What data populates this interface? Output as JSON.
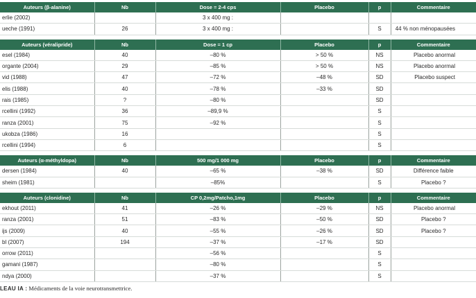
{
  "tables": [
    {
      "headers": [
        "Auteurs (β-alanine)",
        "Nb",
        "Dose = 2-4 cps",
        "Placebo",
        "p",
        "Commentaire"
      ],
      "rows": [
        [
          "erlie (2002)",
          "",
          "3 x 400 mg :",
          "",
          "",
          ""
        ],
        [
          "ueche (1991)",
          "26",
          "3 x 400 mg :",
          "",
          "S",
          "44 % non ménopausées"
        ]
      ]
    },
    {
      "headers": [
        "Auteurs (véralipride)",
        "Nb",
        "Dose = 1 cp",
        "Placebo",
        "p",
        "Commentaire"
      ],
      "rows": [
        [
          "esel (1984)",
          "40",
          "–80 %",
          "> 50 %",
          "NS",
          "Placebo anormal"
        ],
        [
          "organte (2004)",
          "29",
          "–85 %",
          "> 50 %",
          "NS",
          "Placebo anormal"
        ],
        [
          "vid (1988)",
          "47",
          "–72 %",
          "–48 %",
          "SD",
          "Placebo suspect"
        ],
        [
          "elis (1988)",
          "40",
          "–78 %",
          "–33 %",
          "SD",
          ""
        ],
        [
          "rais (1985)",
          "?",
          "–80 %",
          "",
          "SD",
          ""
        ],
        [
          "rcellini (1992)",
          "36",
          "–89,9 %",
          "",
          "S",
          ""
        ],
        [
          "ranza (2001)",
          "75",
          "–92 %",
          "",
          "S",
          ""
        ],
        [
          "ukobza (1986)",
          "16",
          "",
          "",
          "S",
          ""
        ],
        [
          "rcellini (1994)",
          "6",
          "",
          "",
          "S",
          ""
        ]
      ]
    },
    {
      "headers": [
        "Auteurs (α-méthyldopa)",
        "Nb",
        "500 mg/1 000 mg",
        "Placebo",
        "p",
        "Commentaire"
      ],
      "rows": [
        [
          "dersen (1984)",
          "40",
          "–65 %",
          "–38 %",
          "SD",
          "Différence faible"
        ],
        [
          "sheim (1981)",
          "",
          "–85%",
          "",
          "S",
          "Placebo ?"
        ]
      ]
    },
    {
      "headers": [
        "Auteurs (clonidine)",
        "Nb",
        "CP 0,2mg/Patcho,1mg",
        "Placebo",
        "p",
        "Commentaire"
      ],
      "rows": [
        [
          "ekhout (2011)",
          "41",
          "–26 %",
          "–29 %",
          "NS",
          "Placebo anormal"
        ],
        [
          "ranza (2001)",
          "51",
          "–83 %",
          "–50 %",
          "SD",
          "Placebo ?"
        ],
        [
          "ijs (2009)",
          "40",
          "–55 %",
          "–26 %",
          "SD",
          "Placebo ?"
        ],
        [
          "bl (2007)",
          "194",
          "–37 %",
          "–17 %",
          "SD",
          ""
        ],
        [
          "orrow (2011)",
          "",
          "–56 %",
          "",
          "S",
          ""
        ],
        [
          "gamani (1987)",
          "",
          "–80 %",
          "",
          "S",
          ""
        ],
        [
          "ndya (2000)",
          "",
          "–37 %",
          "",
          "S",
          ""
        ]
      ]
    }
  ],
  "caption": {
    "label": "LEAU IA :",
    "text": " Médicaments de la voie neurotransmettrice."
  }
}
